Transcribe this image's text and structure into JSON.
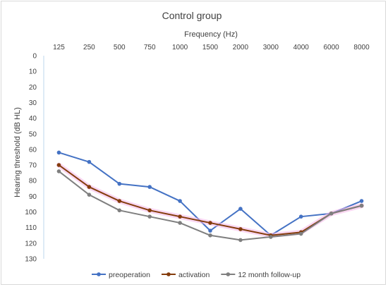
{
  "chart_data": {
    "type": "line",
    "title": "Control group",
    "xlabel": "Frequency (Hz)",
    "ylabel": "Hearing threshold (dB HL)",
    "categories": [
      "125",
      "250",
      "500",
      "750",
      "1000",
      "1500",
      "2000",
      "3000",
      "4000",
      "6000",
      "8000"
    ],
    "yticks": [
      "0",
      "10",
      "20",
      "30",
      "40",
      "50",
      "60",
      "70",
      "80",
      "90",
      "100",
      "110",
      "120",
      "130"
    ],
    "ylim": [
      0,
      130
    ],
    "y_inverted": true,
    "x_axis_position": "top",
    "grid": false,
    "legend_position": "bottom",
    "series": [
      {
        "name": "preoperation",
        "color": "#4472C4",
        "values": [
          62,
          68,
          82,
          84,
          93,
          112,
          98,
          115,
          103,
          101,
          93
        ]
      },
      {
        "name": "activation",
        "color": "#843C0C",
        "glow": "#f4b6e7",
        "values": [
          70,
          84,
          93,
          99,
          103,
          107,
          111,
          115,
          113,
          101,
          96
        ]
      },
      {
        "name": "12 month follow-up",
        "color": "#7F7F7F",
        "values": [
          74,
          89,
          99,
          103,
          107,
          115,
          118,
          116,
          114,
          101,
          96
        ]
      }
    ]
  }
}
